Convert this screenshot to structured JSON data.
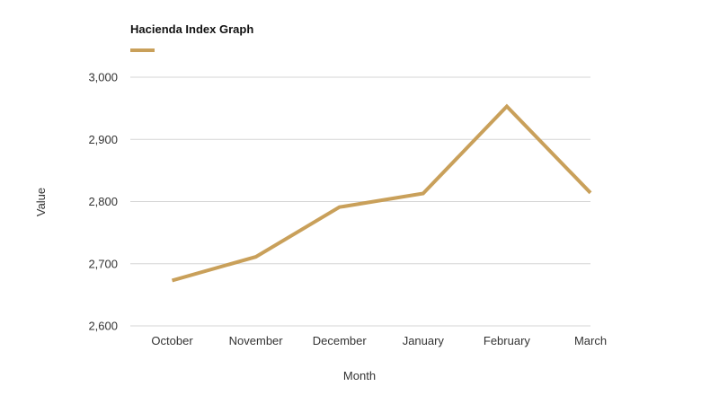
{
  "chart_data": {
    "type": "line",
    "legend_title": "Hacienda Index Graph",
    "legend_position": "top-left",
    "xlabel": "Month",
    "ylabel": "Value",
    "categories": [
      "October",
      "November",
      "December",
      "January",
      "February",
      "March"
    ],
    "series": [
      {
        "name": "Hacienda Index Graph",
        "color": "#c9a05a",
        "values": [
          2673,
          2711,
          2791,
          2813,
          2953,
          2814
        ]
      }
    ],
    "ylim": [
      2600,
      3000
    ],
    "yticks": [
      3000,
      2900,
      2800,
      2700,
      2600
    ],
    "ytick_labels": [
      "3,000",
      "2,900",
      "2,800",
      "2,700",
      "2,600"
    ],
    "grid": true
  }
}
